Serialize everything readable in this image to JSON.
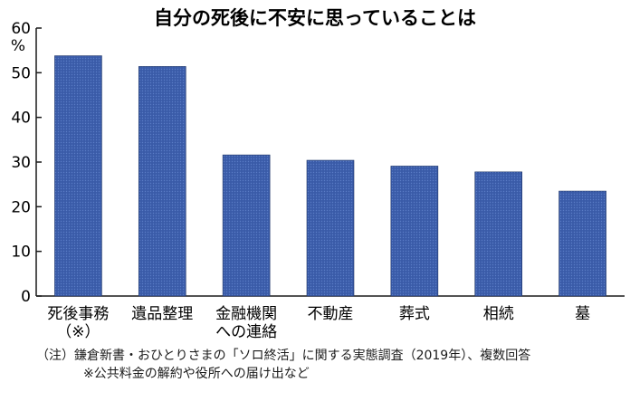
{
  "chart_data": {
    "type": "bar",
    "title": "自分の死後に不安に思っていることは",
    "ylabel": "%",
    "ylim": [
      0,
      60
    ],
    "yticks": [
      0,
      10,
      20,
      30,
      40,
      50,
      60
    ],
    "grid": false,
    "categories": [
      [
        "死後事務",
        "（※）"
      ],
      [
        "遺品整理"
      ],
      [
        "金融機関",
        "への連絡"
      ],
      [
        "不動産"
      ],
      [
        "葬式"
      ],
      [
        "相続"
      ],
      [
        "墓"
      ]
    ],
    "values": [
      53.8,
      51.4,
      31.6,
      30.4,
      29.1,
      27.8,
      23.5
    ],
    "bar_color": "#3a5ba8",
    "bar_edge_color": "#1e3566",
    "axis_color": "#1a1a1a"
  },
  "notes": {
    "source": "（注）鎌倉新書・おひとりさまの「ソロ終活」に関する実態調査（2019年）、複数回答",
    "footnote": "※公共料金の解約や役所への届け出など"
  }
}
